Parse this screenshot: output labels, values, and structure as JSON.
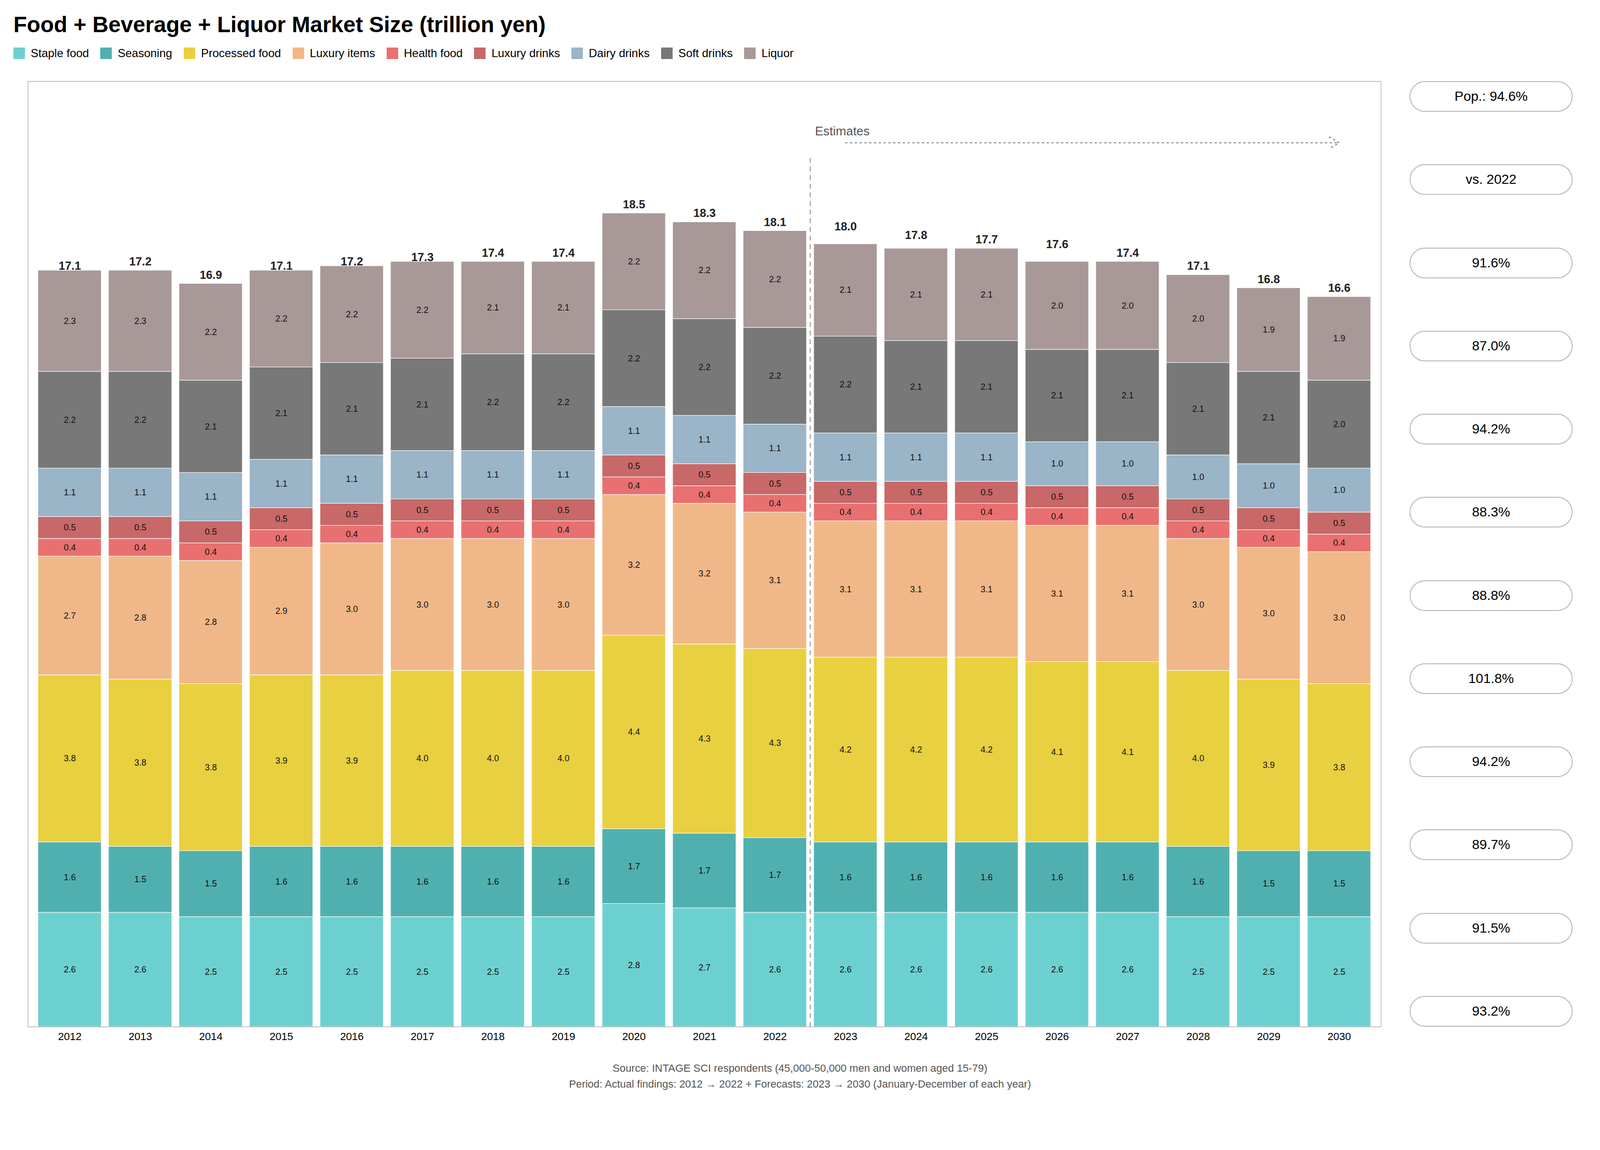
{
  "chart_data": {
    "type": "bar",
    "stacked": true,
    "title": "Food + Beverage + Liquor Market Size (trillion yen)",
    "categories": [
      "2012",
      "2013",
      "2014",
      "2015",
      "2016",
      "2017",
      "2018",
      "2019",
      "2020",
      "2021",
      "2022",
      "2023",
      "2024",
      "2025",
      "2026",
      "2027",
      "2028",
      "2029",
      "2030"
    ],
    "series": [
      {
        "name": "Staple food",
        "color": "#6dd0d0",
        "values": [
          2.6,
          2.6,
          2.5,
          2.5,
          2.5,
          2.5,
          2.5,
          2.5,
          2.8,
          2.7,
          2.6,
          2.6,
          2.6,
          2.6,
          2.6,
          2.6,
          2.5,
          2.5,
          2.5
        ],
        "value_labels": [
          "2.6",
          "2.6",
          "2.5",
          "2.5",
          "2.5",
          "2.5",
          "2.5",
          "2.5",
          "2.8",
          "2.7",
          "2.6",
          "2.6",
          "2.6",
          "2.6",
          "2.6",
          "2.6",
          "2.5",
          "2.5",
          "2.5"
        ]
      },
      {
        "name": "Seasoning",
        "color": "#50b0b0",
        "values": [
          1.6,
          1.5,
          1.5,
          1.6,
          1.6,
          1.6,
          1.6,
          1.6,
          1.7,
          1.7,
          1.7,
          1.6,
          1.6,
          1.6,
          1.6,
          1.6,
          1.6,
          1.5,
          1.5
        ],
        "value_labels": [
          "1.6",
          "1.5",
          "1.5",
          "1.6",
          "1.6",
          "1.6",
          "1.6",
          "1.6",
          "1.7",
          "1.7",
          "1.7",
          "1.6",
          "1.6",
          "1.6",
          "1.6",
          "1.6",
          "1.6",
          "1.5",
          "1.5"
        ]
      },
      {
        "name": "Processed food",
        "color": "#e8d040",
        "values": [
          3.8,
          3.8,
          3.8,
          3.9,
          3.9,
          4.0,
          4.0,
          4.0,
          4.4,
          4.3,
          4.3,
          4.2,
          4.2,
          4.2,
          4.1,
          4.1,
          4.0,
          3.9,
          3.8
        ],
        "value_labels": [
          "3.8",
          "3.8",
          "3.8",
          "3.9",
          "3.9",
          "4.0",
          "4.0",
          "4.0",
          "4.4",
          "4.3",
          "4.3",
          "4.2",
          "4.2",
          "4.2",
          "4.1",
          "4.1",
          "4.0",
          "3.9",
          "3.8"
        ]
      },
      {
        "name": "Luxury items",
        "color": "#f0b888",
        "values": [
          2.7,
          2.8,
          2.8,
          2.9,
          3.0,
          3.0,
          3.0,
          3.0,
          3.2,
          3.2,
          3.1,
          3.1,
          3.1,
          3.1,
          3.1,
          3.1,
          3.0,
          3.0,
          3.0
        ],
        "value_labels": [
          "2.7",
          "2.8",
          "2.8",
          "2.9",
          "3.0",
          "3.0",
          "3.0",
          "3.0",
          "3.2",
          "3.2",
          "3.1",
          "3.1",
          "3.1",
          "3.1",
          "3.1",
          "3.1",
          "3.0",
          "3.0",
          "3.0"
        ]
      },
      {
        "name": "Health food",
        "color": "#e87070",
        "values": [
          0.4,
          0.4,
          0.4,
          0.4,
          0.4,
          0.4,
          0.4,
          0.4,
          0.4,
          0.4,
          0.4,
          0.4,
          0.4,
          0.4,
          0.4,
          0.4,
          0.4,
          0.4,
          0.4
        ],
        "value_labels": [
          "0.4",
          "0.4",
          "0.4",
          "0.4",
          "0.4",
          "0.4",
          "0.4",
          "0.4",
          "0.4",
          "0.4",
          "0.4",
          "0.4",
          "0.4",
          "0.4",
          "0.4",
          "0.4",
          "0.4",
          "0.4",
          "0.4"
        ]
      },
      {
        "name": "Luxury drinks",
        "color": "#c86868",
        "values": [
          0.5,
          0.5,
          0.5,
          0.5,
          0.5,
          0.5,
          0.5,
          0.5,
          0.5,
          0.5,
          0.5,
          0.5,
          0.5,
          0.5,
          0.5,
          0.5,
          0.5,
          0.5,
          0.5
        ],
        "value_labels": [
          "0.5",
          "0.5",
          "0.5",
          "0.5",
          "0.5",
          "0.5",
          "0.5",
          "0.5",
          "0.5",
          "0.5",
          "0.5",
          "0.5",
          "0.5",
          "0.5",
          "0.5",
          "0.5",
          "0.5",
          "0.5",
          "0.5"
        ]
      },
      {
        "name": "Dairy drinks",
        "color": "#9ab4c8",
        "values": [
          1.1,
          1.1,
          1.1,
          1.1,
          1.1,
          1.1,
          1.1,
          1.1,
          1.1,
          1.1,
          1.1,
          1.1,
          1.1,
          1.1,
          1.0,
          1.0,
          1.0,
          1.0,
          1.0
        ],
        "value_labels": [
          "1.1",
          "1.1",
          "1.1",
          "1.1",
          "1.1",
          "1.1",
          "1.1",
          "1.1",
          "1.1",
          "1.1",
          "1.1",
          "1.1",
          "1.1",
          "1.1",
          "1.0",
          "1.0",
          "1.0",
          "1.0",
          "1.0"
        ]
      },
      {
        "name": "Soft drinks",
        "color": "#787878",
        "values": [
          2.2,
          2.2,
          2.1,
          2.1,
          2.1,
          2.1,
          2.2,
          2.2,
          2.2,
          2.2,
          2.2,
          2.2,
          2.1,
          2.1,
          2.1,
          2.1,
          2.1,
          2.1,
          2.0
        ],
        "value_labels": [
          "2.2",
          "2.2",
          "2.1",
          "2.1",
          "2.1",
          "2.1",
          "2.2",
          "2.2",
          "2.2",
          "2.2",
          "2.2",
          "2.2",
          "2.1",
          "2.1",
          "2.1",
          "2.1",
          "2.1",
          "2.1",
          "2.0"
        ]
      },
      {
        "name": "Liquor",
        "color": "#a89898",
        "values": [
          2.3,
          2.3,
          2.2,
          2.2,
          2.2,
          2.2,
          2.1,
          2.1,
          2.2,
          2.2,
          2.2,
          2.1,
          2.1,
          2.1,
          2.0,
          2.0,
          2.0,
          1.9,
          1.9
        ],
        "value_labels": [
          "2.3",
          "2.3",
          "2.2",
          "2.2",
          "2.2",
          "2.2",
          "2.1",
          "2.1",
          "2.2",
          "2.2",
          "2.2",
          "2.1",
          "2.1",
          "2.1",
          "2.0",
          "2.0",
          "2.0",
          "1.9",
          "1.9"
        ]
      }
    ],
    "totals": [
      17.1,
      17.2,
      16.9,
      17.1,
      17.2,
      17.3,
      17.4,
      17.4,
      18.5,
      18.3,
      18.1,
      18.0,
      17.8,
      17.7,
      17.6,
      17.4,
      17.1,
      16.8,
      16.6
    ],
    "total_labels": [
      "17.1",
      "17.2",
      "16.9",
      "17.1",
      "17.2",
      "17.3",
      "17.4",
      "17.4",
      "18.5",
      "18.3",
      "18.1",
      "18.0",
      "17.8",
      "17.7",
      "17.6",
      "17.4",
      "17.1",
      "16.8",
      "16.6"
    ],
    "ylim": [
      0,
      21.5
    ],
    "tick_labels": "x",
    "data_labels": true,
    "legend": "upper left",
    "annotations": [
      {
        "text": "Estimates",
        "x": "2023"
      },
      {
        "text": "Pop.: 94.6%"
      },
      {
        "text": "vs. 2022"
      },
      {
        "text": "91.6%"
      },
      {
        "text": "87.0%"
      },
      {
        "text": "94.2%"
      },
      {
        "text": "88.3%"
      },
      {
        "text": "88.8%"
      },
      {
        "text": "101.8%"
      },
      {
        "text": "94.2%"
      },
      {
        "text": "89.7%"
      },
      {
        "text": "91.5%"
      },
      {
        "text": "93.2%"
      }
    ],
    "caption": [
      "Source: INTAGE SCI respondents (45,000-50,000 men and women aged 15-79)",
      "Period: Actual findings: 2012 → 2022 + Forecasts: 2023 → 2030 (January-December of each year)"
    ]
  }
}
